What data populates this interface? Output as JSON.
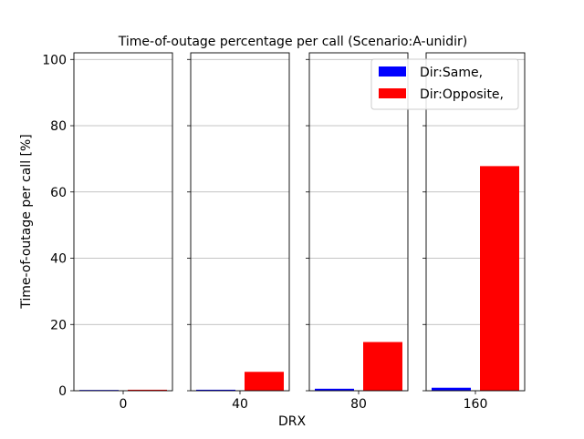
{
  "chart_data": {
    "type": "bar",
    "title": "Time-of-outage percentage per call (Scenario:A-unidir)",
    "xlabel": "DRX",
    "ylabel": "Time-of-outage per call [%]",
    "ylim": [
      0,
      102
    ],
    "yticks": [
      0,
      20,
      40,
      60,
      80,
      100
    ],
    "grid": "y",
    "legend_position": "top-right",
    "categories": [
      "0",
      "40",
      "80",
      "160"
    ],
    "series": [
      {
        "name": "Dir:Same,",
        "color": "#0000ff",
        "values": [
          0.05,
          0.3,
          0.6,
          0.9
        ]
      },
      {
        "name": "Dir:Opposite,",
        "color": "#ff0000",
        "values": [
          0.3,
          5.7,
          14.7,
          67.8
        ]
      }
    ]
  }
}
